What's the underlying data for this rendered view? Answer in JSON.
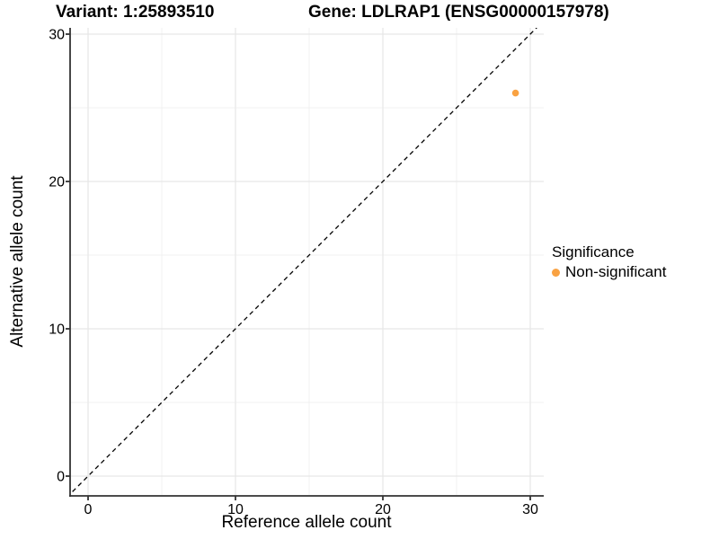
{
  "chart_data": {
    "type": "scatter",
    "titles": {
      "left": "Variant: 1:25893510",
      "right": "Gene: LDLRAP1 (ENSG00000157978)"
    },
    "xlabel": "Reference allele count",
    "ylabel": "Alternative allele count",
    "xlim": [
      -1.3,
      30.9
    ],
    "ylim": [
      -1.3,
      30.4
    ],
    "x_ticks": [
      0,
      10,
      20,
      30
    ],
    "y_ticks": [
      0,
      10,
      20,
      30
    ],
    "x_minor_ticks": [
      5,
      15,
      25
    ],
    "y_minor_ticks": [
      5,
      15,
      25
    ],
    "grid": "major and minor, light gray, on white panel",
    "reference_line": {
      "kind": "identity y=x",
      "style": "dashed",
      "color": "#000000"
    },
    "series": [
      {
        "name": "Non-significant",
        "color": "#F9A242",
        "points": [
          {
            "x": 29,
            "y": 26
          }
        ]
      }
    ],
    "legend": {
      "title": "Significance",
      "position": "right",
      "entries": [
        {
          "label": "Non-significant",
          "color": "#F9A242"
        }
      ]
    }
  },
  "style_colors": {
    "background": "#FFFFFF",
    "grid_major": "#E7E7E7",
    "grid_minor": "#F0F0F0",
    "axis_line": "#333333",
    "text": "#000000",
    "point": "#F9A242"
  }
}
